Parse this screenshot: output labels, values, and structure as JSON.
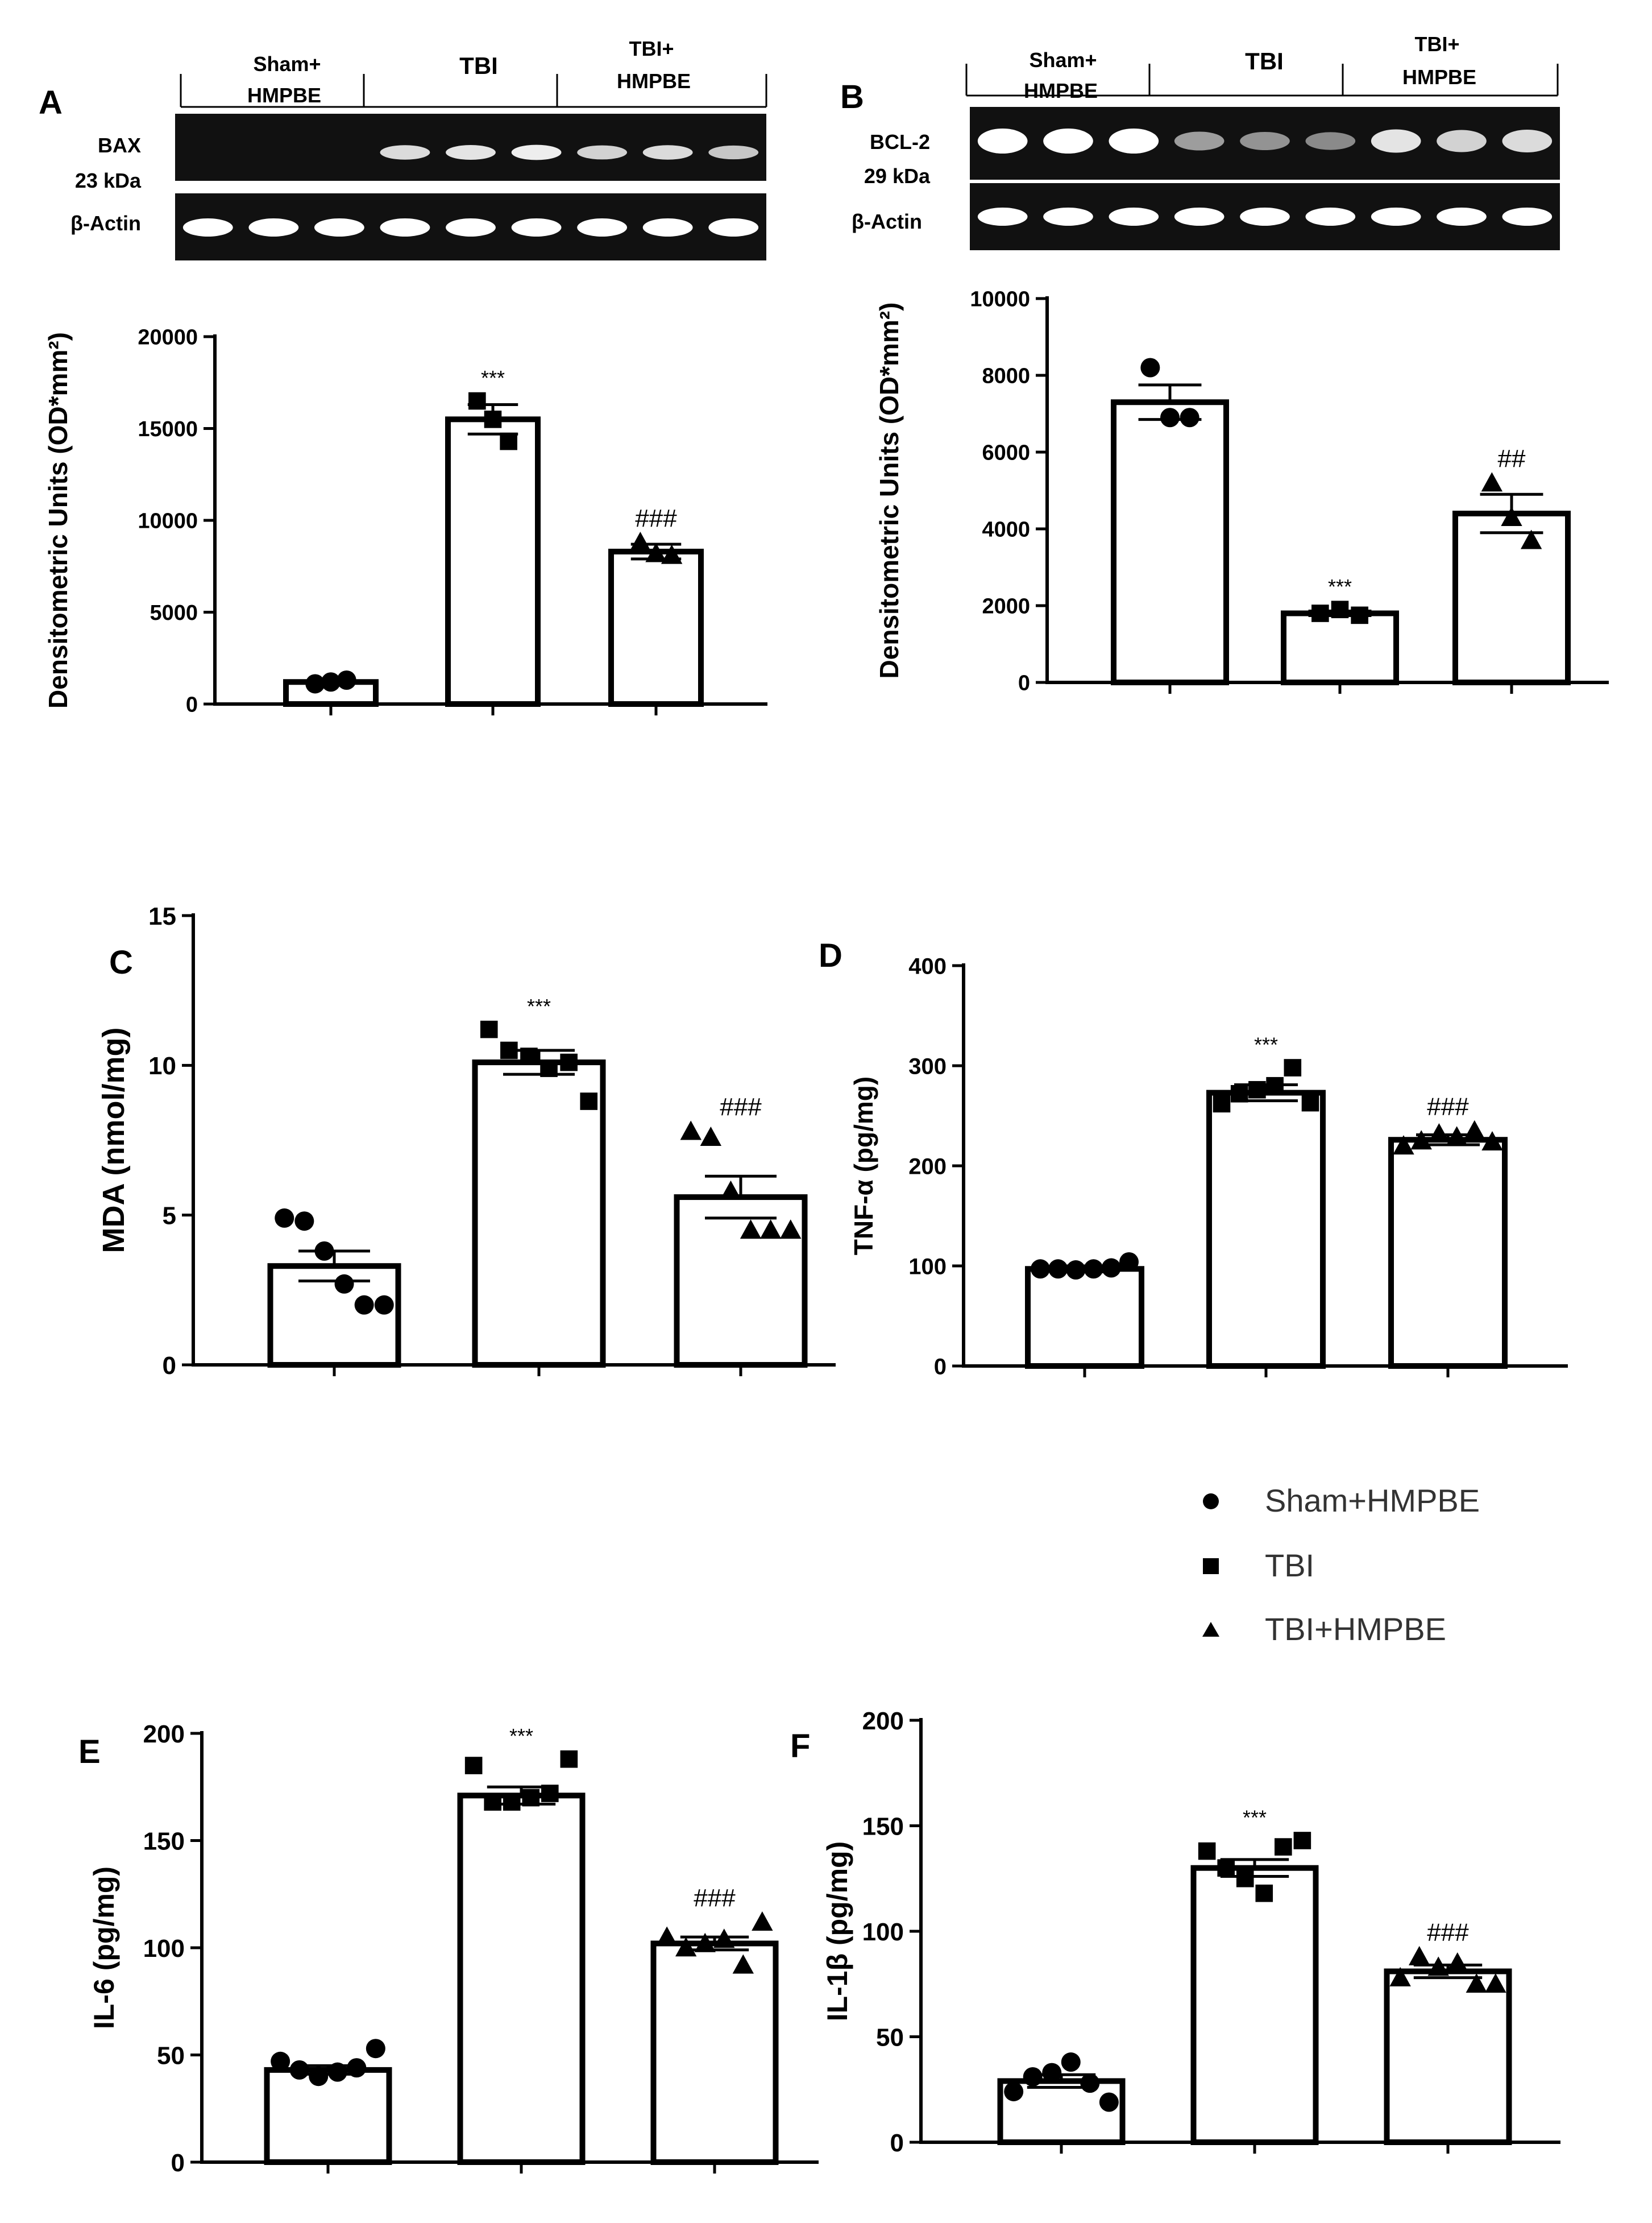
{
  "figure": {
    "panels": {
      "A": {
        "letter": "A",
        "protein": "BAX",
        "kda": "23 kDa",
        "actin": "β-Actin",
        "groups": [
          "Sham+",
          "HMPBE",
          "TBI",
          "TBI+",
          "HMPBE"
        ]
      },
      "B": {
        "letter": "B",
        "protein": "BCL-2",
        "kda": "29 kDa",
        "actin": "β-Actin",
        "groups": [
          "Sham+",
          "HMPBE",
          "TBI",
          "TBI+",
          "HMPBE"
        ]
      },
      "C": {
        "letter": "C"
      },
      "D": {
        "letter": "D"
      },
      "E": {
        "letter": "E"
      },
      "F": {
        "letter": "F"
      }
    },
    "legend": {
      "placement": "center-right",
      "items": [
        {
          "label": "Sham+HMPBE",
          "marker": "circle"
        },
        {
          "label": "TBI",
          "marker": "square"
        },
        {
          "label": "TBI+HMPBE",
          "marker": "triangle"
        }
      ]
    },
    "colors": {
      "ink": "#000000",
      "bar_fill": "#ffffff",
      "blot_bg": "#111111",
      "band": "#e8e8e8"
    },
    "blot_intensity": {
      "A": {
        "target": [
          0.05,
          0.05,
          0.05,
          0.8,
          0.85,
          0.9,
          0.75,
          0.8,
          0.7
        ],
        "actin": [
          1,
          1,
          1,
          1,
          1,
          1,
          1,
          1,
          1
        ]
      },
      "B": {
        "target": [
          1,
          1,
          1,
          0.45,
          0.4,
          0.35,
          0.85,
          0.75,
          0.8
        ],
        "actin": [
          1,
          1,
          1,
          1,
          1,
          1,
          1,
          1,
          1
        ]
      }
    }
  },
  "chart_data": [
    {
      "id": "A",
      "type": "bar",
      "ylabel": "Densitometric Units (OD*mm²)",
      "ylim": [
        0,
        20000
      ],
      "yticks": [
        0,
        5000,
        10000,
        15000,
        20000
      ],
      "categories": [
        "Sham+HMPBE",
        "TBI",
        "TBI+HMPBE"
      ],
      "values": [
        1200,
        15500,
        8300
      ],
      "errors": [
        0,
        800,
        400
      ],
      "points": [
        [
          1100,
          1200,
          1300
        ],
        [
          16500,
          15500,
          14300
        ],
        [
          8800,
          8200,
          8100
        ]
      ],
      "markers": [
        "circle",
        "square",
        "triangle"
      ],
      "annotations": [
        "",
        "***",
        "###"
      ]
    },
    {
      "id": "B",
      "type": "bar",
      "ylabel": "Densitometric Units (OD*mm²)",
      "ylim": [
        0,
        10000
      ],
      "yticks": [
        0,
        2000,
        4000,
        6000,
        8000,
        10000
      ],
      "categories": [
        "Sham+HMPBE",
        "TBI",
        "TBI+HMPBE"
      ],
      "values": [
        7300,
        1800,
        4400
      ],
      "errors": [
        450,
        60,
        500
      ],
      "points": [
        [
          8200,
          6900,
          6900
        ],
        [
          1800,
          1900,
          1750
        ],
        [
          5200,
          4300,
          3700
        ]
      ],
      "markers": [
        "circle",
        "square",
        "triangle"
      ],
      "annotations": [
        "",
        "***",
        "##"
      ]
    },
    {
      "id": "C",
      "type": "bar",
      "ylabel": "MDA (nmol/mg)",
      "ylim": [
        0,
        15
      ],
      "yticks": [
        0,
        5,
        10,
        15
      ],
      "categories": [
        "Sham+HMPBE",
        "TBI",
        "TBI+HMPBE"
      ],
      "values": [
        3.3,
        10.1,
        5.6
      ],
      "errors": [
        0.5,
        0.4,
        0.7
      ],
      "points": [
        [
          4.9,
          4.8,
          3.8,
          2.7,
          2.0,
          2.0
        ],
        [
          11.2,
          10.5,
          10.3,
          9.9,
          10.1,
          8.8
        ],
        [
          7.8,
          7.6,
          5.8,
          4.5,
          4.5,
          4.5
        ]
      ],
      "markers": [
        "circle",
        "square",
        "triangle"
      ],
      "annotations": [
        "",
        "***",
        "###"
      ]
    },
    {
      "id": "D",
      "type": "bar",
      "ylabel": "TNF-α (pg/mg)",
      "ylim": [
        0,
        400
      ],
      "yticks": [
        0,
        100,
        200,
        300,
        400
      ],
      "categories": [
        "Sham+HMPBE",
        "TBI",
        "TBI+HMPBE"
      ],
      "values": [
        97,
        273,
        226
      ],
      "errors": [
        3,
        8,
        5
      ],
      "points": [
        [
          97,
          97,
          96,
          97,
          98,
          104
        ],
        [
          262,
          272,
          276,
          280,
          298,
          263
        ],
        [
          220,
          225,
          232,
          229,
          235,
          224
        ]
      ],
      "markers": [
        "circle",
        "square",
        "triangle"
      ],
      "annotations": [
        "",
        "***",
        "###"
      ]
    },
    {
      "id": "E",
      "type": "bar",
      "ylabel": "IL-6 (pg/mg)",
      "ylim": [
        0,
        200
      ],
      "yticks": [
        0,
        50,
        100,
        150,
        200
      ],
      "categories": [
        "Sham+HMPBE",
        "TBI",
        "TBI+HMPBE"
      ],
      "values": [
        43,
        171,
        102
      ],
      "errors": [
        2,
        4,
        3
      ],
      "points": [
        [
          47,
          43,
          40,
          42,
          44,
          53
        ],
        [
          185,
          168,
          168,
          170,
          172,
          188
        ],
        [
          105,
          100,
          102,
          104,
          92,
          112
        ]
      ],
      "markers": [
        "circle",
        "square",
        "triangle"
      ],
      "annotations": [
        "",
        "***",
        "###"
      ]
    },
    {
      "id": "F",
      "type": "bar",
      "ylabel": "IL-1β (pg/mg)",
      "ylim": [
        0,
        200
      ],
      "yticks": [
        0,
        50,
        100,
        150,
        200
      ],
      "categories": [
        "Sham+HMPBE",
        "TBI",
        "TBI+HMPBE"
      ],
      "values": [
        29,
        130,
        81
      ],
      "errors": [
        3,
        4,
        3
      ],
      "points": [
        [
          24,
          31,
          33,
          38,
          28,
          19
        ],
        [
          138,
          130,
          125,
          118,
          140,
          143
        ],
        [
          78,
          88,
          83,
          85,
          75,
          75
        ]
      ],
      "markers": [
        "circle",
        "square",
        "triangle"
      ],
      "annotations": [
        "",
        "***",
        "###"
      ]
    }
  ]
}
